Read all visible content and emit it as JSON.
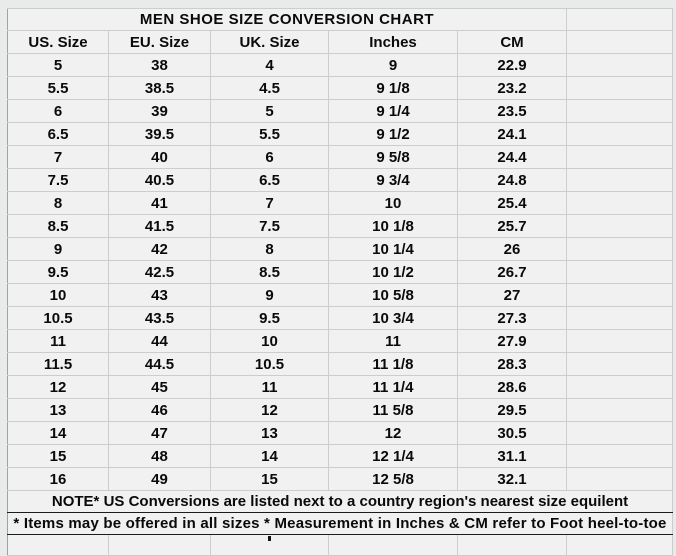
{
  "title": "MEN SHOE SIZE CONVERSION CHART",
  "colors": {
    "accent_green": "#1ed36e",
    "header_separator_green": "#12b05a",
    "cell_background": "#f1f1f2",
    "gridline_gray": "#cbcecd",
    "note_border_black": "#1c1c1c",
    "title_text_green": "#17d16c"
  },
  "chart_data": {
    "type": "table",
    "title": "MEN SHOE SIZE CONVERSION CHART",
    "columns": [
      "US. Size",
      "EU. Size",
      "UK. Size",
      "Inches",
      "CM"
    ],
    "rows": [
      [
        "5",
        "38",
        "4",
        "9",
        "22.9"
      ],
      [
        "5.5",
        "38.5",
        "4.5",
        "9 1/8",
        "23.2"
      ],
      [
        "6",
        "39",
        "5",
        "9 1/4",
        "23.5"
      ],
      [
        "6.5",
        "39.5",
        "5.5",
        "9 1/2",
        "24.1"
      ],
      [
        "7",
        "40",
        "6",
        "9 5/8",
        "24.4"
      ],
      [
        "7.5",
        "40.5",
        "6.5",
        "9 3/4",
        "24.8"
      ],
      [
        "8",
        "41",
        "7",
        "10",
        "25.4"
      ],
      [
        "8.5",
        "41.5",
        "7.5",
        "10 1/8",
        "25.7"
      ],
      [
        "9",
        "42",
        "8",
        "10 1/4",
        "26"
      ],
      [
        "9.5",
        "42.5",
        "8.5",
        "10 1/2",
        "26.7"
      ],
      [
        "10",
        "43",
        "9",
        "10 5/8",
        "27"
      ],
      [
        "10.5",
        "43.5",
        "9.5",
        "10 3/4",
        "27.3"
      ],
      [
        "11",
        "44",
        "10",
        "11",
        "27.9"
      ],
      [
        "11.5",
        "44.5",
        "10.5",
        "11 1/8",
        "28.3"
      ],
      [
        "12",
        "45",
        "11",
        "11 1/4",
        "28.6"
      ],
      [
        "13",
        "46",
        "12",
        "11 5/8",
        "29.5"
      ],
      [
        "14",
        "47",
        "13",
        "12",
        "30.5"
      ],
      [
        "15",
        "48",
        "14",
        "12 1/4",
        "31.1"
      ],
      [
        "16",
        "49",
        "15",
        "12 5/8",
        "32.1"
      ]
    ],
    "notes": [
      "NOTE* US Conversions are listed next to a country region's nearest size equilent",
      "* Items may be offered in all sizes * Measurement in Inches & CM refer to Foot heel-to-toe"
    ]
  },
  "notes": {
    "note1": "NOTE* US Conversions are listed next to a country region's nearest size equilent",
    "note2": "* Items may be offered in all sizes * Measurement in Inches & CM refer to Foot heel-to-toe"
  }
}
